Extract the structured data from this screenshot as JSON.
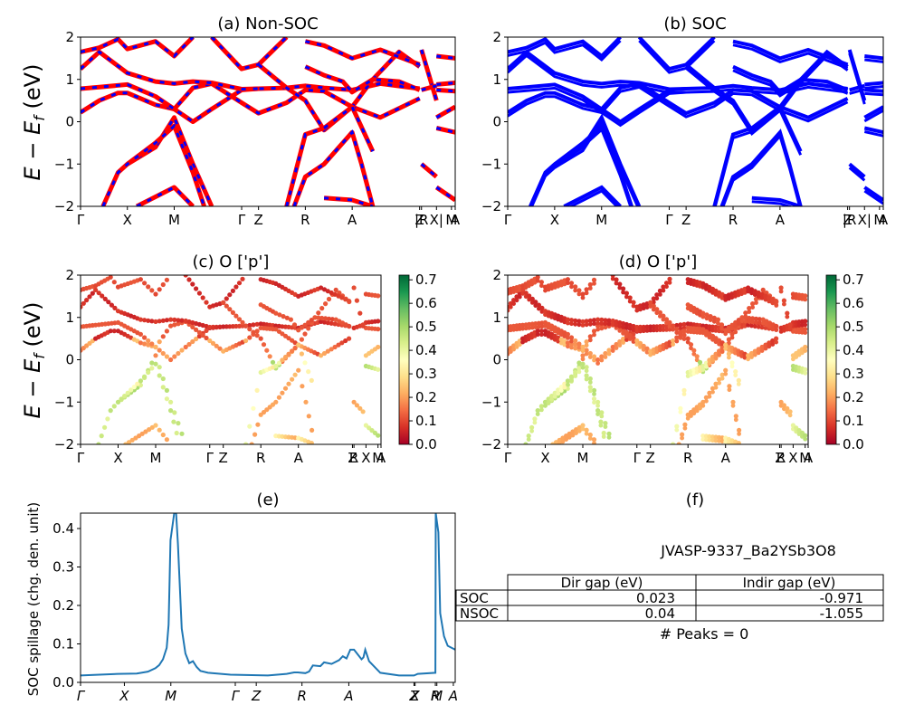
{
  "figure": {
    "ylabel_band": "E − E_f (eV)",
    "material": "JVASP-9337_Ba2YSb3O8"
  },
  "chart_data": [
    {
      "id": "a",
      "type": "line",
      "title": "(a) Non-SOC",
      "ylabel": "E − E_f (eV)",
      "ylim": [
        -2,
        2
      ],
      "yticks": [
        "−2",
        "−1",
        "0",
        "1",
        "2"
      ],
      "xticks": [
        "Γ",
        "X",
        "M",
        "Γ",
        "Z",
        "R",
        "A",
        "Z",
        "|R",
        "X|",
        "M",
        "A"
      ],
      "xtick_pos": [
        0,
        0.125,
        0.25,
        0.43,
        0.475,
        0.6,
        0.725,
        0.905,
        0.91,
        0.95,
        0.99,
        1.0
      ],
      "series_style": "red solid with blue dashes overlay",
      "colors": {
        "line": "#ff0000",
        "dash": "#0000ff"
      },
      "series": [
        {
          "name": "band1",
          "x": [
            0,
            0.05,
            0.1,
            0.125,
            0.2,
            0.25,
            0.3,
            0.35,
            0.43,
            0.475,
            0.55,
            0.6,
            0.65,
            0.725,
            0.8,
            0.905
          ],
          "y": [
            0.22,
            0.5,
            0.68,
            0.68,
            0.4,
            0.3,
            0.0,
            0.3,
            0.75,
            0.78,
            0.8,
            0.85,
            0.8,
            0.75,
            0.9,
            0.78
          ]
        },
        {
          "name": "band2",
          "x": [
            0,
            0.05,
            0.125,
            0.2,
            0.25,
            0.3,
            0.35,
            0.43,
            0.475,
            0.55,
            0.6,
            0.65,
            0.725,
            0.8,
            0.905
          ],
          "y": [
            0.78,
            0.82,
            0.88,
            0.6,
            0.3,
            0.8,
            0.9,
            0.45,
            0.2,
            0.45,
            0.75,
            0.72,
            0.35,
            0.1,
            0.55
          ]
        },
        {
          "name": "band3",
          "x": [
            0,
            0.05,
            0.125,
            0.2,
            0.25,
            0.3,
            0.35,
            0.43,
            0.475
          ],
          "y": [
            1.25,
            1.65,
            1.15,
            0.95,
            0.9,
            0.95,
            0.92,
            0.77,
            0.78
          ]
        },
        {
          "name": "band4",
          "x": [
            0,
            0.05,
            0.1,
            0.125,
            0.2,
            0.25,
            0.3
          ],
          "y": [
            1.65,
            1.75,
            1.95,
            1.72,
            1.9,
            1.55,
            2.0
          ]
        },
        {
          "name": "band5",
          "x": [
            0.125,
            0.2,
            0.25,
            0.3,
            0.35
          ],
          "y": [
            -1.0,
            -0.6,
            0.1,
            -1.0,
            -2.0
          ]
        },
        {
          "name": "band6",
          "x": [
            0.06,
            0.1,
            0.125,
            0.2,
            0.25,
            0.3,
            0.33
          ],
          "y": [
            -2.0,
            -1.2,
            -1.0,
            -0.5,
            -0.1,
            -1.2,
            -2.0
          ]
        },
        {
          "name": "band7",
          "x": [
            0.15,
            0.25,
            0.3
          ],
          "y": [
            -2.0,
            -1.55,
            -2.0
          ]
        },
        {
          "name": "band8",
          "x": [
            0.35,
            0.43,
            0.475,
            0.55
          ],
          "y": [
            2.0,
            1.25,
            1.35,
            2.0
          ]
        },
        {
          "name": "band9",
          "x": [
            0.475,
            0.55,
            0.6,
            0.65,
            0.725,
            0.78,
            0.85,
            0.905
          ],
          "y": [
            1.35,
            0.8,
            0.5,
            -0.2,
            0.35,
            1.0,
            1.65,
            1.3
          ]
        },
        {
          "name": "band10",
          "x": [
            0.55,
            0.6,
            0.65,
            0.725,
            0.78
          ],
          "y": [
            -2.0,
            -0.3,
            -0.15,
            0.35,
            -0.7
          ]
        },
        {
          "name": "band11",
          "x": [
            0.57,
            0.6,
            0.65,
            0.725,
            0.75,
            0.78
          ],
          "y": [
            -2.0,
            -1.3,
            -1.0,
            -0.25,
            -1.0,
            -2.0
          ]
        },
        {
          "name": "band12",
          "x": [
            0.6,
            0.65,
            0.7,
            0.725,
            0.78,
            0.85,
            0.905
          ],
          "y": [
            1.3,
            1.1,
            0.95,
            0.7,
            1.0,
            0.95,
            0.75
          ]
        },
        {
          "name": "band13",
          "x": [
            0.6,
            0.65,
            0.725,
            0.8,
            0.905
          ],
          "y": [
            1.9,
            1.8,
            1.5,
            1.7,
            1.35
          ]
        },
        {
          "name": "band14",
          "x": [
            0.65,
            0.725,
            0.78
          ],
          "y": [
            -1.8,
            -1.85,
            -2.0
          ]
        },
        {
          "name": "band15",
          "x": [
            0.91,
            0.95
          ],
          "y": [
            -1.0,
            -1.3
          ]
        },
        {
          "name": "band16",
          "x": [
            0.95,
            1.0
          ],
          "y": [
            -1.55,
            -1.85
          ]
        },
        {
          "name": "band17",
          "x": [
            0.95,
            1.0
          ],
          "y": [
            -0.15,
            -0.25
          ]
        },
        {
          "name": "band18",
          "x": [
            0.95,
            1.0
          ],
          "y": [
            0.1,
            0.35
          ]
        },
        {
          "name": "band19",
          "x": [
            0.95,
            1.0
          ],
          "y": [
            0.75,
            0.72
          ]
        },
        {
          "name": "band20",
          "x": [
            0.95,
            1.0
          ],
          "y": [
            0.88,
            0.92
          ]
        },
        {
          "name": "band21",
          "x": [
            0.95,
            1.0
          ],
          "y": [
            1.55,
            1.5
          ]
        },
        {
          "name": "band22",
          "x": [
            0.91,
            0.95
          ],
          "y": [
            1.7,
            0.5
          ]
        },
        {
          "name": "band23",
          "x": [
            0.91,
            0.95
          ],
          "y": [
            0.75,
            0.85
          ]
        }
      ]
    },
    {
      "id": "b",
      "type": "line",
      "title": "(b) SOC",
      "ylim": [
        -2,
        2
      ],
      "yticks": [
        "−2",
        "−1",
        "0",
        "1",
        "2"
      ],
      "xticks": [
        "Γ",
        "X",
        "M",
        "Γ",
        "Z",
        "R",
        "A",
        "Z",
        "|R",
        "X|",
        "M",
        "A"
      ],
      "xtick_pos": [
        0,
        0.125,
        0.25,
        0.43,
        0.475,
        0.6,
        0.725,
        0.905,
        0.91,
        0.95,
        0.99,
        1.0
      ],
      "colors": {
        "line": "#0000ff"
      },
      "note": "same bands as (a), doubled (spin-split)"
    },
    {
      "id": "c",
      "type": "scatter",
      "title": "(c)  O ['p']",
      "ylim": [
        -2,
        2
      ],
      "yticks": [
        "−2",
        "−1",
        "0",
        "1",
        "2"
      ],
      "xticks": [
        "Γ",
        "X",
        "M",
        "Γ",
        "Z",
        "R",
        "A",
        "Z",
        "R",
        "X",
        "M",
        "A"
      ],
      "colorbar": {
        "cmap": "RdYlGn",
        "min": 0.0,
        "max": 0.72,
        "ticks": [
          "0.0",
          "0.1",
          "0.2",
          "0.3",
          "0.4",
          "0.5",
          "0.6",
          "0.7"
        ]
      },
      "note": "band points colored by O p-orbital projection weight"
    },
    {
      "id": "d",
      "type": "scatter",
      "title": "(d) O ['p']",
      "ylim": [
        -2,
        2
      ],
      "yticks": [
        "−2",
        "−1",
        "0",
        "1",
        "2"
      ],
      "xticks": [
        "Γ",
        "X",
        "M",
        "Γ",
        "Z",
        "R",
        "A",
        "Z",
        "R",
        "X",
        "M",
        "A"
      ],
      "colorbar": {
        "cmap": "RdYlGn",
        "min": 0.0,
        "max": 0.72,
        "ticks": [
          "0.0",
          "0.1",
          "0.2",
          "0.3",
          "0.4",
          "0.5",
          "0.6",
          "0.7"
        ]
      }
    },
    {
      "id": "e",
      "type": "line",
      "title": "(e)",
      "ylabel": "SOC spillage (chg. den. unit)",
      "ylim": [
        0,
        0.44
      ],
      "yticks": [
        "0.0",
        "0.1",
        "0.2",
        "0.3",
        "0.4"
      ],
      "xticks": [
        "Γ",
        "X",
        "M",
        "Γ",
        "Z",
        "R",
        "A",
        "Z",
        "X",
        "R",
        "M",
        "A"
      ],
      "xtick_pos": [
        0,
        0.117,
        0.241,
        0.413,
        0.469,
        0.591,
        0.716,
        0.89,
        0.893,
        0.947,
        0.951,
        0.995
      ],
      "color": "#1f77b4",
      "x": [
        0,
        0.05,
        0.1,
        0.15,
        0.18,
        0.2,
        0.21,
        0.22,
        0.23,
        0.235,
        0.24,
        0.25,
        0.255,
        0.26,
        0.27,
        0.28,
        0.29,
        0.3,
        0.31,
        0.32,
        0.34,
        0.4,
        0.5,
        0.55,
        0.57,
        0.58,
        0.6,
        0.61,
        0.62,
        0.64,
        0.65,
        0.67,
        0.69,
        0.7,
        0.71,
        0.72,
        0.73,
        0.75,
        0.755,
        0.76,
        0.77,
        0.8,
        0.85,
        0.89,
        0.9,
        0.947,
        0.948,
        0.955,
        0.96,
        0.97,
        0.98,
        0.99,
        1.0
      ],
      "y": [
        0.018,
        0.02,
        0.022,
        0.023,
        0.028,
        0.037,
        0.045,
        0.06,
        0.09,
        0.15,
        0.37,
        0.44,
        0.44,
        0.36,
        0.14,
        0.075,
        0.05,
        0.055,
        0.04,
        0.03,
        0.025,
        0.02,
        0.018,
        0.022,
        0.026,
        0.026,
        0.024,
        0.028,
        0.044,
        0.042,
        0.052,
        0.048,
        0.058,
        0.068,
        0.062,
        0.085,
        0.085,
        0.06,
        0.065,
        0.085,
        0.055,
        0.025,
        0.018,
        0.018,
        0.022,
        0.025,
        0.44,
        0.39,
        0.18,
        0.12,
        0.095,
        0.09,
        0.085
      ]
    },
    {
      "id": "f",
      "type": "table",
      "title": "(f)",
      "subtitle": "JVASP-9337_Ba2YSb3O8",
      "columns": [
        "",
        "Dir gap (eV)",
        "Indir gap (eV)"
      ],
      "rows": [
        [
          "SOC",
          "0.023",
          "-0.971"
        ],
        [
          "NSOC",
          "0.04",
          "-1.055"
        ]
      ],
      "footer": "# Peaks = 0"
    }
  ]
}
